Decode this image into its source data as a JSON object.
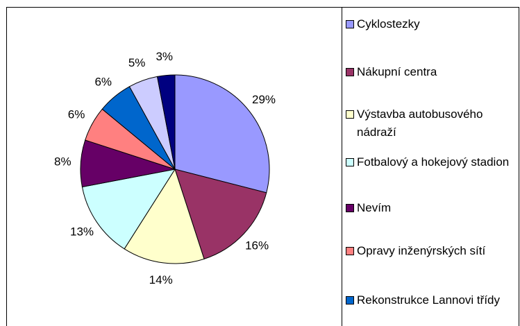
{
  "chart_data": {
    "type": "pie",
    "categories": [
      "Cyklostezky",
      "Nákupní centra",
      "Výstavba autobusového nádraží",
      "Fotbalový a hokejový stadion",
      "Nevím",
      "Opravy inženýrských sítí",
      "Rekonstrukce Lannovi třídy",
      null,
      null
    ],
    "values": [
      29,
      16,
      14,
      13,
      8,
      6,
      6,
      5,
      3
    ],
    "value_labels": [
      "29%",
      "16%",
      "14%",
      "13%",
      "8%",
      "6%",
      "6%",
      "5%",
      "3%"
    ],
    "colors": [
      "#9999ff",
      "#993366",
      "#ffffcc",
      "#ccffff",
      "#660066",
      "#ff8080",
      "#0066cc",
      "#ccccff",
      "#000080"
    ]
  }
}
